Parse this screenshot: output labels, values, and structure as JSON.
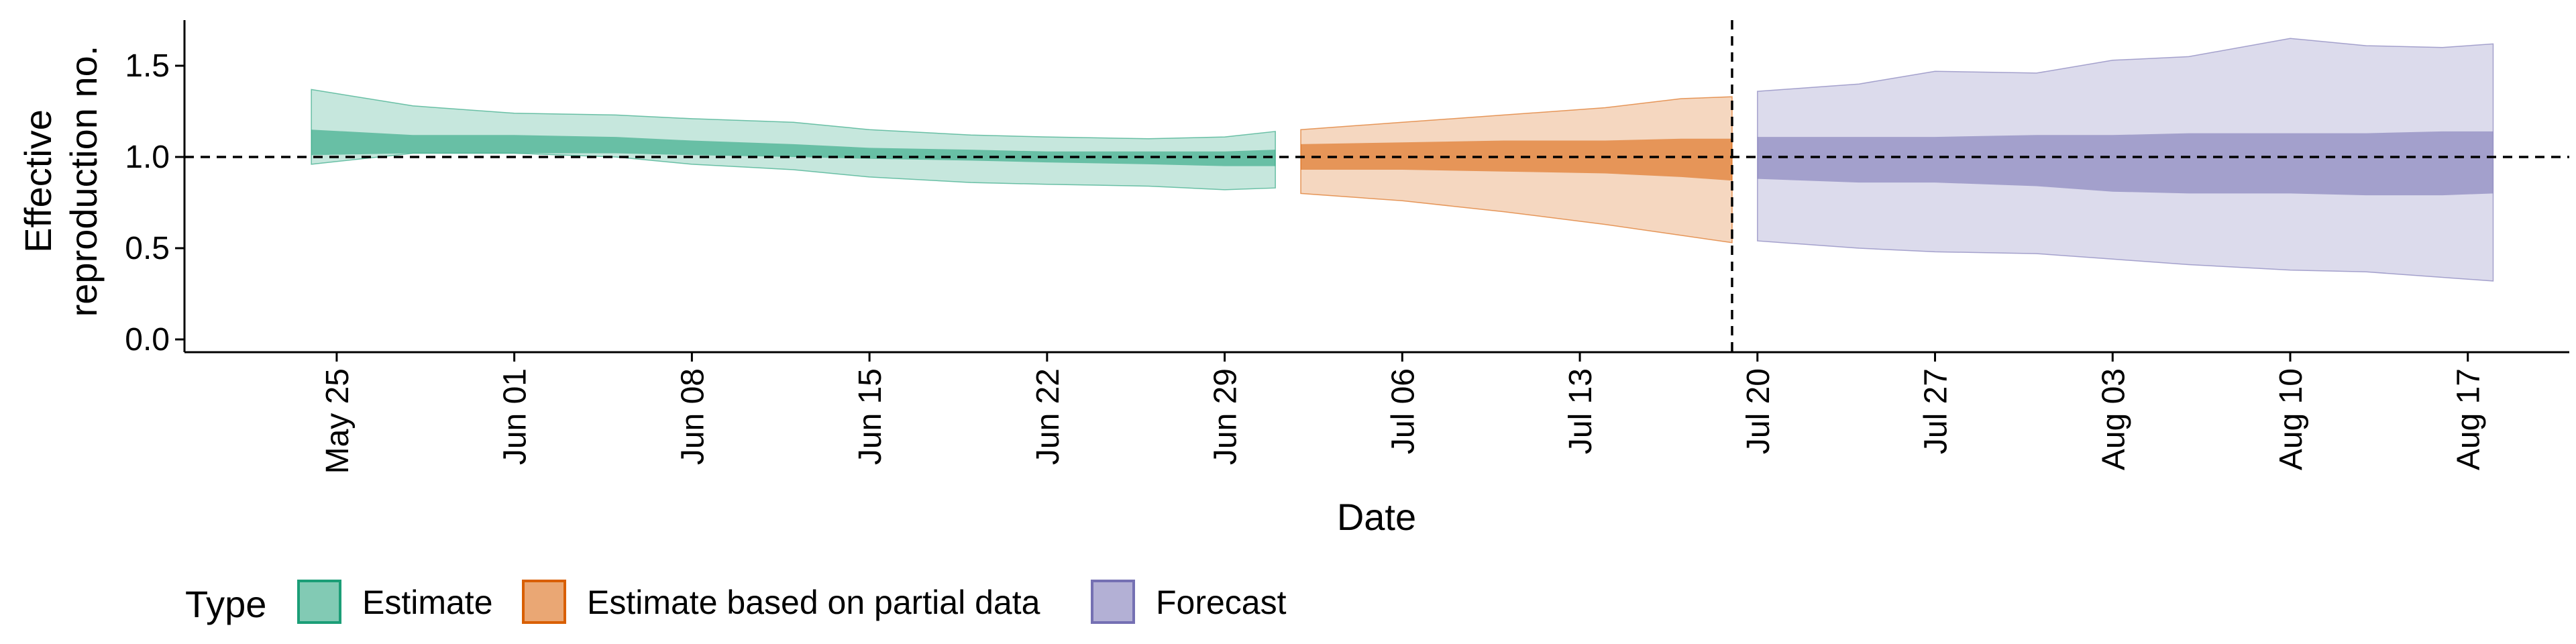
{
  "chart_data": {
    "type": "area",
    "xlabel": "Date",
    "ylabel_lines": [
      "Effective",
      "reproduction no."
    ],
    "y_ticks": [
      0.0,
      0.5,
      1.0,
      1.5
    ],
    "y_tick_labels": [
      "0.0",
      "0.5",
      "1.0",
      "1.5"
    ],
    "ylim": [
      -0.07,
      1.75
    ],
    "x_ticks": [
      "2020-05-25",
      "2020-06-01",
      "2020-06-08",
      "2020-06-15",
      "2020-06-22",
      "2020-06-29",
      "2020-07-06",
      "2020-07-13",
      "2020-07-20",
      "2020-07-27",
      "2020-08-03",
      "2020-08-10",
      "2020-08-17"
    ],
    "x_tick_labels": [
      "May 25",
      "Jun 01",
      "Jun 08",
      "Jun 15",
      "Jun 22",
      "Jun 29",
      "Jul 06",
      "Jul 13",
      "Jul 20",
      "Jul 27",
      "Aug 03",
      "Aug 10",
      "Aug 17"
    ],
    "xlim": [
      "2020-05-19",
      "2020-08-21"
    ],
    "reference_hline": 1.0,
    "forecast_date_vline": "2020-07-19",
    "legend_title": "Type",
    "legend_position": "bottom",
    "series": [
      {
        "name": "Estimate",
        "color": "#1b9e77",
        "dates": [
          "2020-05-24",
          "2020-05-28",
          "2020-06-01",
          "2020-06-05",
          "2020-06-08",
          "2020-06-12",
          "2020-06-15",
          "2020-06-19",
          "2020-06-22",
          "2020-06-26",
          "2020-06-29",
          "2020-07-01"
        ],
        "outer_upper": [
          1.37,
          1.28,
          1.24,
          1.23,
          1.21,
          1.19,
          1.15,
          1.12,
          1.11,
          1.1,
          1.11,
          1.14
        ],
        "outer_lower": [
          0.96,
          1.02,
          1.02,
          1.0,
          0.96,
          0.93,
          0.89,
          0.86,
          0.85,
          0.84,
          0.82,
          0.83
        ],
        "inner_upper": [
          1.15,
          1.12,
          1.12,
          1.11,
          1.09,
          1.07,
          1.05,
          1.04,
          1.03,
          1.03,
          1.03,
          1.04
        ],
        "inner_lower": [
          1.01,
          1.02,
          1.02,
          1.02,
          1.01,
          1.0,
          0.99,
          0.98,
          0.97,
          0.96,
          0.95,
          0.95
        ]
      },
      {
        "name": "Estimate based on partial data",
        "color": "#d95f02",
        "dates": [
          "2020-07-02",
          "2020-07-06",
          "2020-07-10",
          "2020-07-14",
          "2020-07-17",
          "2020-07-19"
        ],
        "outer_upper": [
          1.15,
          1.19,
          1.23,
          1.27,
          1.32,
          1.33
        ],
        "outer_lower": [
          0.8,
          0.76,
          0.7,
          0.63,
          0.57,
          0.53
        ],
        "inner_upper": [
          1.07,
          1.08,
          1.09,
          1.09,
          1.1,
          1.1
        ],
        "inner_lower": [
          0.93,
          0.93,
          0.92,
          0.91,
          0.89,
          0.87
        ]
      },
      {
        "name": "Forecast",
        "color": "#7570b3",
        "dates": [
          "2020-07-20",
          "2020-07-24",
          "2020-07-27",
          "2020-07-31",
          "2020-08-03",
          "2020-08-06",
          "2020-08-10",
          "2020-08-13",
          "2020-08-16",
          "2020-08-18"
        ],
        "outer_upper": [
          1.36,
          1.4,
          1.47,
          1.46,
          1.53,
          1.55,
          1.65,
          1.61,
          1.6,
          1.62
        ],
        "outer_lower": [
          0.54,
          0.5,
          0.48,
          0.47,
          0.44,
          0.41,
          0.38,
          0.37,
          0.34,
          0.32
        ],
        "inner_upper": [
          1.11,
          1.11,
          1.11,
          1.12,
          1.12,
          1.13,
          1.13,
          1.13,
          1.14,
          1.14
        ],
        "inner_lower": [
          0.88,
          0.86,
          0.86,
          0.84,
          0.81,
          0.8,
          0.8,
          0.79,
          0.79,
          0.8
        ]
      }
    ]
  }
}
